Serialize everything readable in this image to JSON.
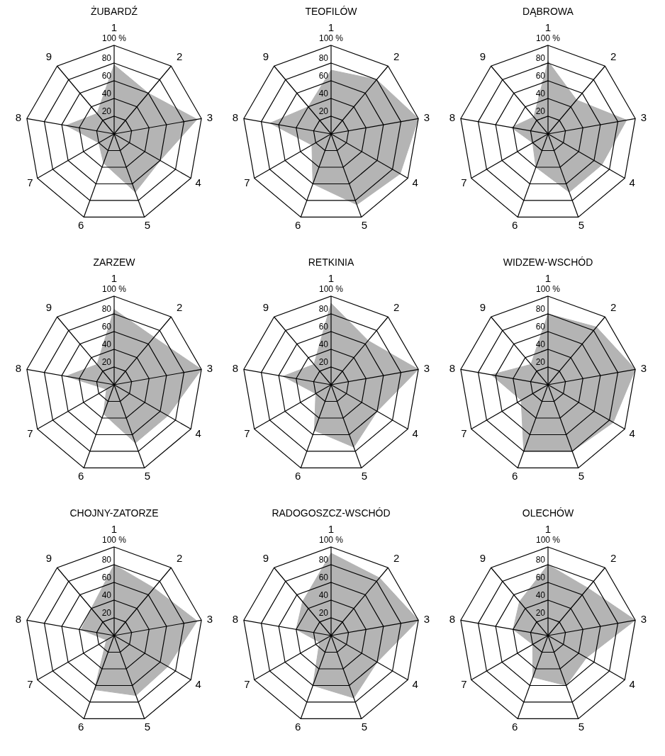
{
  "chart_data": [
    {
      "type": "radar",
      "title": "ŻUBARDŹ",
      "ylabel": "%",
      "categories": [
        "1",
        "2",
        "3",
        "4",
        "5",
        "6",
        "7",
        "8",
        "9"
      ],
      "series": [
        {
          "color": "#b4b4b4",
          "values": [
            78,
            60,
            95,
            60,
            70,
            35,
            20,
            55,
            30
          ]
        }
      ],
      "ylim": [
        0,
        100
      ],
      "yticks": [
        20,
        40,
        60,
        80,
        100
      ],
      "grid": true
    },
    {
      "type": "radar",
      "title": "TEOFILÓW",
      "ylabel": "%",
      "categories": [
        "1",
        "2",
        "3",
        "4",
        "5",
        "6",
        "7",
        "8",
        "9"
      ],
      "series": [
        {
          "color": "#b4b4b4",
          "values": [
            72,
            80,
            100,
            90,
            85,
            60,
            25,
            70,
            40
          ]
        }
      ],
      "ylim": [
        0,
        100
      ],
      "yticks": [
        20,
        40,
        60,
        80,
        100
      ],
      "grid": true
    },
    {
      "type": "radar",
      "title": "DĄBROWA",
      "ylabel": "%",
      "categories": [
        "1",
        "2",
        "3",
        "4",
        "5",
        "6",
        "7",
        "8",
        "9"
      ],
      "series": [
        {
          "color": "#b4b4b4",
          "values": [
            82,
            50,
            90,
            70,
            70,
            40,
            20,
            42,
            25
          ]
        }
      ],
      "ylim": [
        0,
        100
      ],
      "yticks": [
        20,
        40,
        60,
        80,
        100
      ],
      "grid": true
    },
    {
      "type": "radar",
      "title": "ZARZEW",
      "ylabel": "%",
      "categories": [
        "1",
        "2",
        "3",
        "4",
        "5",
        "6",
        "7",
        "8",
        "9"
      ],
      "series": [
        {
          "color": "#b4b4b4",
          "values": [
            85,
            70,
            100,
            70,
            70,
            35,
            10,
            55,
            30
          ]
        }
      ],
      "ylim": [
        0,
        100
      ],
      "yticks": [
        20,
        40,
        60,
        80,
        100
      ],
      "grid": true
    },
    {
      "type": "radar",
      "title": "RETKINIA",
      "ylabel": "%",
      "categories": [
        "1",
        "2",
        "3",
        "4",
        "5",
        "6",
        "7",
        "8",
        "9"
      ],
      "series": [
        {
          "color": "#b4b4b4",
          "values": [
            92,
            65,
            100,
            60,
            75,
            55,
            20,
            55,
            30
          ]
        }
      ],
      "ylim": [
        0,
        100
      ],
      "yticks": [
        20,
        40,
        60,
        80,
        100
      ],
      "grid": true
    },
    {
      "type": "radar",
      "title": "WIDZEW-WSCHÓD",
      "ylabel": "%",
      "categories": [
        "1",
        "2",
        "3",
        "4",
        "5",
        "6",
        "7",
        "8",
        "9"
      ],
      "series": [
        {
          "color": "#b4b4b4",
          "values": [
            80,
            85,
            100,
            85,
            80,
            80,
            35,
            65,
            30
          ]
        }
      ],
      "ylim": [
        0,
        100
      ],
      "yticks": [
        20,
        40,
        60,
        80,
        100
      ],
      "grid": true
    },
    {
      "type": "radar",
      "title": "CHOJNY-ZATORZE",
      "ylabel": "%",
      "categories": [
        "1",
        "2",
        "3",
        "4",
        "5",
        "6",
        "7",
        "8",
        "9"
      ],
      "series": [
        {
          "color": "#b4b4b4",
          "values": [
            80,
            70,
            95,
            70,
            72,
            65,
            10,
            38,
            40
          ]
        }
      ],
      "ylim": [
        0,
        100
      ],
      "yticks": [
        20,
        40,
        60,
        80,
        100
      ],
      "grid": true
    },
    {
      "type": "radar",
      "title": "RADOGOSZCZ-WSCHÓD",
      "ylabel": "%",
      "categories": [
        "1",
        "2",
        "3",
        "4",
        "5",
        "6",
        "7",
        "8",
        "9"
      ],
      "series": [
        {
          "color": "#b4b4b4",
          "values": [
            93,
            85,
            100,
            60,
            75,
            60,
            15,
            40,
            50
          ]
        }
      ],
      "ylim": [
        0,
        100
      ],
      "yticks": [
        20,
        40,
        60,
        80,
        100
      ],
      "grid": true
    },
    {
      "type": "radar",
      "title": "OLECHÓW",
      "ylabel": "%",
      "categories": [
        "1",
        "2",
        "3",
        "4",
        "5",
        "6",
        "7",
        "8",
        "9"
      ],
      "series": [
        {
          "color": "#b4b4b4",
          "values": [
            80,
            70,
            100,
            50,
            60,
            50,
            20,
            40,
            50
          ]
        }
      ],
      "ylim": [
        0,
        100
      ],
      "yticks": [
        20,
        40,
        60,
        80,
        100
      ],
      "grid": true
    }
  ]
}
